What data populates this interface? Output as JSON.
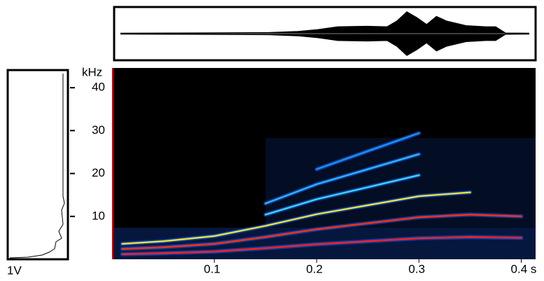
{
  "chart_data": [
    {
      "type": "spectrogram",
      "ylabel": "kHz",
      "xlim": [
        0,
        0.414
      ],
      "ylim": [
        0,
        44.6
      ],
      "xticks": [
        0.1,
        0.2,
        0.3,
        {
          "value": 0.4,
          "label": "0.4 s"
        }
      ],
      "yticks": [
        10,
        20,
        30,
        40
      ],
      "background": "#000000",
      "x": [
        0.01,
        0.05,
        0.1,
        0.15,
        0.2,
        0.25,
        0.3,
        0.35,
        0.4
      ],
      "series": [
        {
          "color": "#ff2020",
          "values": [
            1.2,
            1.4,
            1.8,
            2.6,
            3.5,
            4.2,
            4.9,
            5.2,
            5.0
          ]
        },
        {
          "color": "#ff3010",
          "values": [
            2.4,
            2.8,
            3.6,
            5.2,
            7,
            8.4,
            9.8,
            10.4,
            10
          ]
        },
        {
          "color": "#e8e040",
          "values": [
            3.6,
            4.2,
            5.4,
            7.8,
            10.5,
            12.6,
            14.7,
            15.6,
            null
          ]
        },
        {
          "color": "#40d0f0",
          "values": [
            null,
            null,
            null,
            10.4,
            14,
            16.8,
            19.6,
            null,
            null
          ]
        },
        {
          "color": "#30b0f0",
          "values": [
            null,
            null,
            null,
            13,
            17.5,
            21,
            24.5,
            null,
            null
          ]
        },
        {
          "color": "#2090f0",
          "values": [
            null,
            null,
            null,
            null,
            21,
            25.2,
            29.4,
            null,
            null
          ]
        }
      ]
    },
    {
      "type": "waveform",
      "xlim": [
        0,
        0.414
      ],
      "ylim": [
        -1,
        1
      ],
      "color": "#000000",
      "x": [
        0,
        0.05,
        0.1,
        0.15,
        0.18,
        0.2,
        0.22,
        0.25,
        0.27,
        0.28,
        0.29,
        0.3,
        0.31,
        0.32,
        0.33,
        0.35,
        0.37,
        0.38,
        0.39,
        0.414
      ],
      "values": [
        0.02,
        0.03,
        0.04,
        0.05,
        0.1,
        0.18,
        0.3,
        0.32,
        0.3,
        0.55,
        0.95,
        0.7,
        0.4,
        0.75,
        0.55,
        0.35,
        0.3,
        0.3,
        0.03,
        0.02
      ]
    },
    {
      "type": "spectrum",
      "xlabel": "1V"
    }
  ]
}
